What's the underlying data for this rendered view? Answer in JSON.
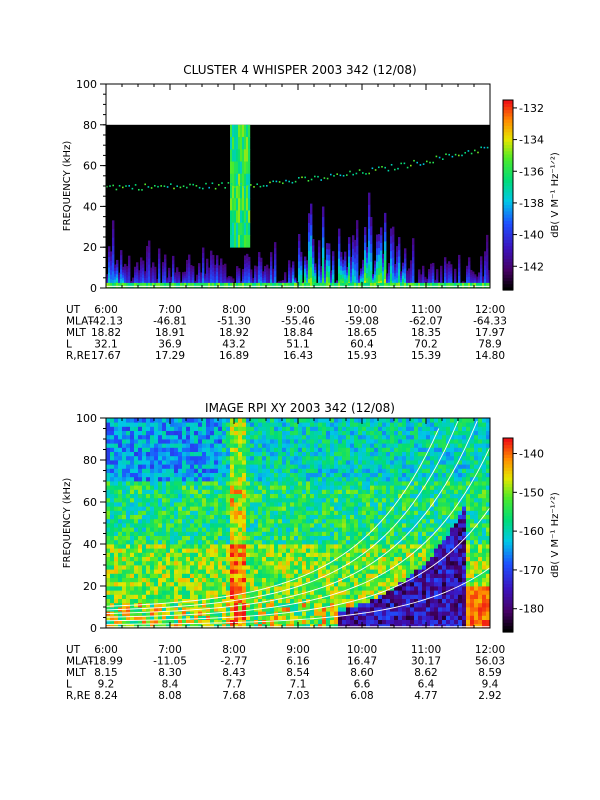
{
  "chart_data": [
    {
      "type": "heatmap",
      "title": "CLUSTER 4 WHISPER 2003 342 (12/08)",
      "ylabel": "FREQUENCY (kHz)",
      "ylim": [
        0,
        100
      ],
      "y_ticks": [
        "0",
        "20",
        "40",
        "60",
        "80",
        "100"
      ],
      "data_max_frequency": 80,
      "x_ticks": [
        "6:00",
        "7:00",
        "8:00",
        "9:00",
        "10:00",
        "11:00",
        "12:00"
      ],
      "colorbar": {
        "label": "dB( V M⁻¹ Hz⁻¹ᐟ²)",
        "range": [
          -143.5,
          -131.5
        ],
        "ticks": [
          "-132",
          "-134",
          "-136",
          "-138",
          "-140",
          "-142"
        ]
      },
      "ephemeris": {
        "labels": [
          "UT",
          "MLAT",
          "MLT",
          "L",
          "R,RE"
        ],
        "MLAT": [
          "-42.13",
          "-46.81",
          "-51.30",
          "-55.46",
          "-59.08",
          "-62.07",
          "-64.33"
        ],
        "MLT": [
          "18.82",
          "18.91",
          "18.92",
          "18.84",
          "18.65",
          "18.35",
          "17.97"
        ],
        "L": [
          "32.1",
          "36.9",
          "43.2",
          "51.1",
          "60.4",
          "70.2",
          "78.9"
        ],
        "RRE": [
          "17.67",
          "17.29",
          "16.89",
          "16.43",
          "15.93",
          "15.39",
          "14.80"
        ]
      }
    },
    {
      "type": "heatmap",
      "title": "IMAGE RPI XY 2003 342 (12/08)",
      "ylabel": "FREQUENCY (kHz)",
      "ylim": [
        0,
        100
      ],
      "y_ticks": [
        "0",
        "20",
        "40",
        "60",
        "80",
        "100"
      ],
      "x_ticks": [
        "6:00",
        "7:00",
        "8:00",
        "9:00",
        "10:00",
        "11:00",
        "12:00"
      ],
      "colorbar": {
        "label": "dB( V M⁻¹ Hz⁻¹ᐟ²)",
        "range": [
          -186,
          -136
        ],
        "ticks": [
          "-140",
          "-150",
          "-160",
          "-170",
          "-180"
        ]
      },
      "ephemeris": {
        "labels": [
          "UT",
          "MLAT",
          "MLT",
          "L",
          "R,RE"
        ],
        "MLAT": [
          "-18.99",
          "-11.05",
          "-2.77",
          "6.16",
          "16.47",
          "30.17",
          "56.03"
        ],
        "MLT": [
          "8.15",
          "8.30",
          "8.43",
          "8.54",
          "8.60",
          "8.62",
          "8.59"
        ],
        "L": [
          "9.2",
          "8.4",
          "7.7",
          "7.1",
          "6.6",
          "6.4",
          "9.4"
        ],
        "RRE": [
          "8.24",
          "8.08",
          "7.68",
          "7.03",
          "6.08",
          "4.77",
          "2.92"
        ]
      }
    }
  ]
}
